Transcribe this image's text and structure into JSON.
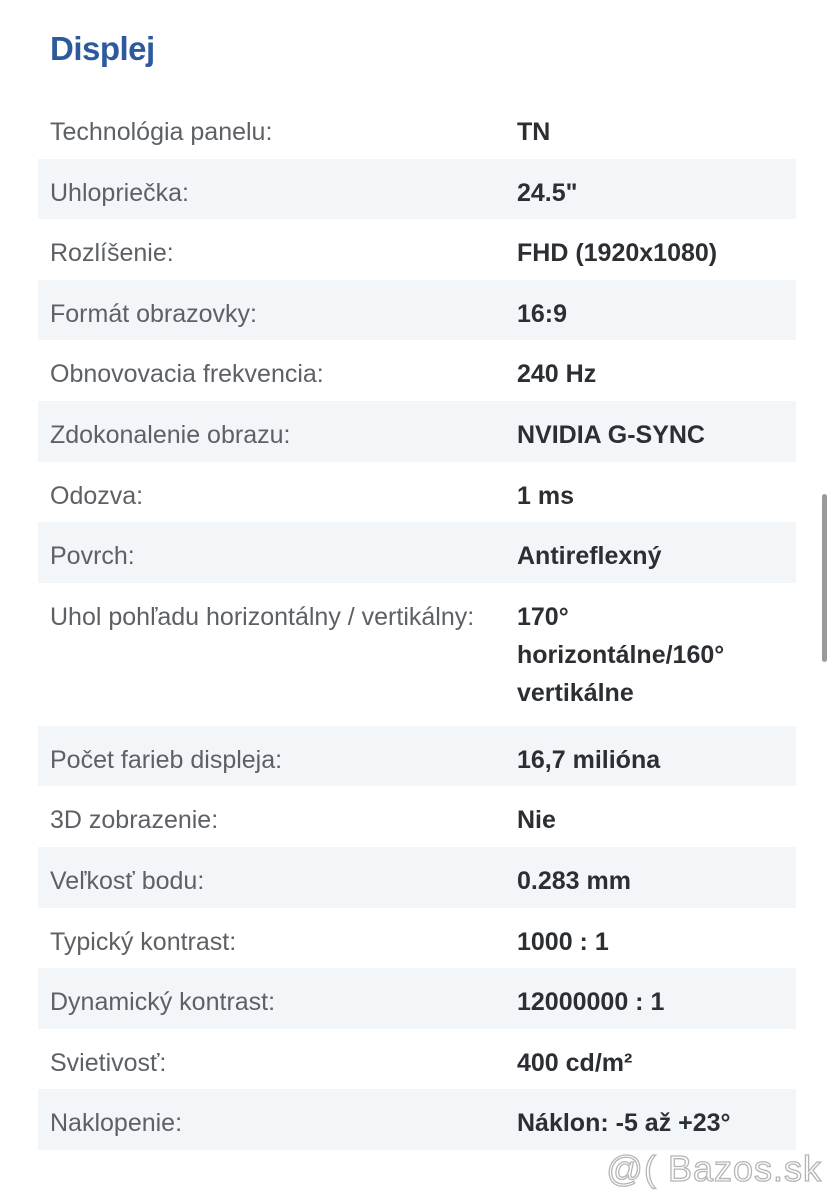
{
  "section_title": "Displej",
  "rows": [
    {
      "label": "Technológia panelu:",
      "value": "TN"
    },
    {
      "label": "Uhlopriečka:",
      "value": "24.5\""
    },
    {
      "label": "Rozlíšenie:",
      "value": "FHD (1920x1080)"
    },
    {
      "label": "Formát obrazovky:",
      "value": "16:9"
    },
    {
      "label": "Obnovovacia frekvencia:",
      "value": "240 Hz"
    },
    {
      "label": "Zdokonalenie obrazu:",
      "value": "NVIDIA G-SYNC"
    },
    {
      "label": "Odozva:",
      "value": "1 ms"
    },
    {
      "label": "Povrch:",
      "value": "Antireflexný"
    },
    {
      "label": "Uhol pohľadu horizontálny / vertikálny:",
      "value": "170° horizontálne/160° vertikálne"
    },
    {
      "label": "Počet farieb displeja:",
      "value": "16,7 milióna"
    },
    {
      "label": "3D zobrazenie:",
      "value": "Nie"
    },
    {
      "label": "Veľkosť bodu:",
      "value": "0.283 mm"
    },
    {
      "label": "Typický kontrast:",
      "value": "1000 : 1"
    },
    {
      "label": "Dynamický kontrast:",
      "value": "12000000 : 1"
    },
    {
      "label": "Svietivosť:",
      "value": "400 cd/m²"
    },
    {
      "label": "Naklopenie:",
      "value": "Náklon: -5 až +23°"
    }
  ],
  "watermark": "@( Bazos.sk",
  "colors": {
    "title": "#2d5a9e",
    "stripe": "#f3f6f9"
  }
}
